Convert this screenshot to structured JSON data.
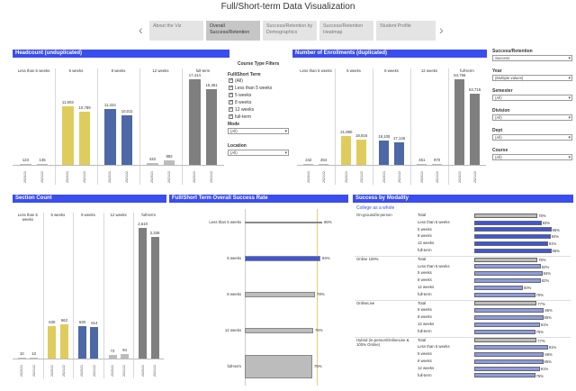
{
  "page_title": "Full/Short-term Data Visualization",
  "colors": {
    "header": "#3a4dee",
    "yellow": "#e0cc5c",
    "blue": "#4c68a6",
    "gray": "#7f7f7f",
    "lightgray": "#bcbcbc",
    "hbar_blue": "#3f56d8"
  },
  "nav": {
    "prev_arrow": "‹",
    "next_arrow": "›",
    "tabs": [
      {
        "label": "About the Viz"
      },
      {
        "label": "Overall Success/Retention"
      },
      {
        "label": "Success/Retention by Demographics"
      },
      {
        "label": "Success/Retention Heatmap"
      },
      {
        "label": "Student Profile"
      }
    ]
  },
  "headcount": {
    "title": "Headcount (unduplicated)",
    "categories": [
      "Less than 5 weeks",
      "5 weeks",
      "8 weeks",
      "12 weeks",
      "full-term"
    ],
    "years": [
      "2020/21",
      "2021/22"
    ],
    "values": [
      [
        123,
        135
      ],
      [
        11903,
        10789
      ],
      [
        11324,
        10011
      ],
      [
        433,
        882
      ],
      [
        17414,
        15361
      ]
    ],
    "labels": [
      [
        "123",
        "135"
      ],
      [
        "11,903",
        "10,789"
      ],
      [
        "11,324",
        "10,011"
      ],
      [
        "433",
        "882"
      ],
      [
        "17,414",
        "15,361"
      ]
    ]
  },
  "enrollments": {
    "title": "Number of Enrollments (duplicated)",
    "categories": [
      "Less than 5 weeks",
      "5 weeks",
      "8 weeks",
      "12 weeks",
      "full-term"
    ],
    "years": [
      "2020/21",
      "2021/22"
    ],
    "values": [
      [
        242,
        264
      ],
      [
        21890,
        18816
      ],
      [
        18105,
        17146
      ],
      [
        461,
        970
      ],
      [
        64756,
        53715
      ]
    ],
    "labels": [
      [
        "242",
        "264"
      ],
      [
        "21,890",
        "18,816"
      ],
      [
        "18,105",
        "17,146"
      ],
      [
        "461",
        "970"
      ],
      [
        "64,756",
        "53,715"
      ]
    ]
  },
  "sections": {
    "title": "Section Count",
    "categories": [
      "Less than 5 weeks",
      "5 weeks",
      "8 weeks",
      "12 weeks",
      "full-term"
    ],
    "years": [
      "2020/21",
      "2021/22"
    ],
    "values": [
      [
        10,
        10
      ],
      [
        630,
        663
      ],
      [
        630,
        614
      ],
      [
        72,
        94
      ],
      [
        2510,
        2335
      ]
    ],
    "labels": [
      [
        "10",
        "10"
      ],
      [
        "630",
        "663"
      ],
      [
        "630",
        "614"
      ],
      [
        "72",
        "94"
      ],
      [
        "2,510",
        "2,335"
      ]
    ]
  },
  "filters_mid": {
    "course_type_title": "Course Type Filters",
    "full_short_label": "Full/Short Term",
    "checkboxes": [
      "(All)",
      "Less than 5 weeks",
      "5 weeks",
      "8 weeks",
      "12 weeks",
      "full-term"
    ],
    "mode_label": "Mode",
    "mode_value": "(All)",
    "location_label": "Location",
    "location_value": "(All)"
  },
  "filters_right": [
    {
      "label": "Success/Retention",
      "value": "Success"
    },
    {
      "label": "Year",
      "value": "(Multiple values)"
    },
    {
      "label": "Semester",
      "value": "(All)"
    },
    {
      "label": "Division",
      "value": "(All)"
    },
    {
      "label": "Dept",
      "value": "(All)"
    },
    {
      "label": "Course",
      "value": "(All)"
    }
  ],
  "overall_success": {
    "title": "Full/Short Term Overall Success Rate",
    "rows": [
      {
        "label": "Less than 5 weeks",
        "value": 86,
        "text": "86%",
        "color": "blue"
      },
      {
        "label": "5 weeks",
        "value": 84,
        "text": "84%",
        "color": "blue"
      },
      {
        "label": "8 weeks",
        "value": 78,
        "text": "78%",
        "color": "light"
      },
      {
        "label": "12 weeks",
        "value": 76,
        "text": "76%",
        "color": "light"
      },
      {
        "label": "full-term",
        "value": 75,
        "text": "75%",
        "color": "light"
      }
    ]
  },
  "modality": {
    "title": "Success by Modality",
    "college_label": "College as a whole",
    "groups": [
      {
        "name": "On-ground/in-person",
        "rows": [
          {
            "label": "Total",
            "value": 78,
            "text": "78%"
          },
          {
            "label": "Less than 5 weeks",
            "value": 83,
            "text": "83%"
          },
          {
            "label": "5 weeks",
            "value": 95,
            "text": "95%"
          },
          {
            "label": "8 weeks",
            "value": 94,
            "text": "94%"
          },
          {
            "label": "12 weeks",
            "value": 91,
            "text": "91%"
          },
          {
            "label": "full-term",
            "value": 95,
            "text": "95%"
          }
        ]
      },
      {
        "name": "Online 100%",
        "rows": [
          {
            "label": "Total",
            "value": 78,
            "text": "78%"
          },
          {
            "label": "Less than 5 weeks",
            "value": 82,
            "text": "82%"
          },
          {
            "label": "5 weeks",
            "value": 84,
            "text": "84%"
          },
          {
            "label": "8 weeks",
            "value": 82,
            "text": "82%"
          },
          {
            "label": "12 weeks",
            "value": 60,
            "text": "60%"
          },
          {
            "label": "full-term",
            "value": 75,
            "text": "75%"
          }
        ]
      },
      {
        "name": "OnlineLive",
        "rows": [
          {
            "label": "Total",
            "value": 77,
            "text": "77%"
          },
          {
            "label": "5 weeks",
            "value": 86,
            "text": "86%"
          },
          {
            "label": "8 weeks",
            "value": 85,
            "text": "85%"
          },
          {
            "label": "12 weeks",
            "value": 81,
            "text": "81%"
          },
          {
            "label": "full-term",
            "value": 75,
            "text": "75%"
          }
        ]
      },
      {
        "name": "Hybrid (in-person/OnlineLive & 100% Online)",
        "rows": [
          {
            "label": "Total",
            "value": 77,
            "text": "77%"
          },
          {
            "label": "Less than 5 weeks",
            "value": 91,
            "text": "91%"
          },
          {
            "label": "5 weeks",
            "value": 86,
            "text": "86%"
          },
          {
            "label": "8 weeks",
            "value": 85,
            "text": "85%"
          },
          {
            "label": "12 weeks",
            "value": 81,
            "text": "81%"
          },
          {
            "label": "full-term",
            "value": 75,
            "text": "75%"
          }
        ]
      }
    ]
  }
}
